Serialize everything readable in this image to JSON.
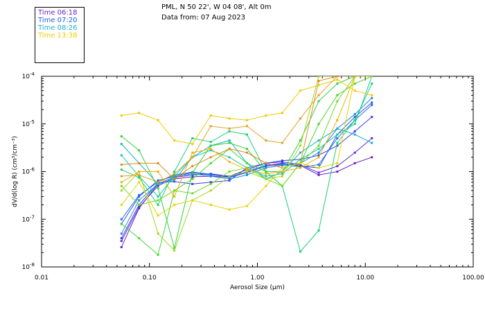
{
  "header": {
    "line1": "PML, N 50 22', W 04 08', Alt 0m",
    "line2": "Data from: 07 Aug 2023"
  },
  "legend": [
    {
      "label": "Time 06:18",
      "color": "#6a1fc8"
    },
    {
      "label": "Time 07:20",
      "color": "#1f5fe0"
    },
    {
      "label": "Time 08:26",
      "color": "#12b8c0"
    },
    {
      "label": "Time 13:38",
      "color": "#f0c800"
    }
  ],
  "chart_data": {
    "type": "line",
    "xscale": "log",
    "yscale": "log",
    "xlim": [
      0.01,
      100
    ],
    "ylim": [
      1e-08,
      0.0001
    ],
    "xlabel": "Aerosol Size (µm)",
    "ylabel": "dV/d(log R) (cm³/cm⁻³)",
    "xticks": [
      {
        "v": 0.01,
        "label": "0.01"
      },
      {
        "v": 0.1,
        "label": "0.10"
      },
      {
        "v": 1,
        "label": "1.00"
      },
      {
        "v": 10,
        "label": "10.00"
      },
      {
        "v": 100,
        "label": "100.00"
      }
    ],
    "yticks": [
      {
        "v": 1e-08,
        "mant": "10",
        "exp": "-8"
      },
      {
        "v": 1e-07,
        "mant": "10",
        "exp": "-7"
      },
      {
        "v": 1e-06,
        "mant": "10",
        "exp": "-6"
      },
      {
        "v": 1e-05,
        "mant": "10",
        "exp": "-5"
      },
      {
        "v": 0.0001,
        "mant": "10",
        "exp": "-4"
      }
    ],
    "x": [
      0.055,
      0.08,
      0.12,
      0.17,
      0.25,
      0.37,
      0.55,
      0.8,
      1.2,
      1.7,
      2.5,
      3.7,
      5.5,
      8.0,
      11.5
    ],
    "series": [
      {
        "color": "#6a1fc8",
        "values": [
          2.6e-08,
          1.7e-07,
          5.5e-07,
          7e-07,
          7.8e-07,
          8e-07,
          7.6e-07,
          1e-06,
          1.35e-06,
          1.45e-06,
          1.35e-06,
          8.5e-07,
          1e-06,
          1.5e-06,
          2e-06
        ]
      },
      {
        "color": "#5a2ad8",
        "values": [
          3.5e-08,
          1.8e-07,
          5e-07,
          7.5e-07,
          8.5e-07,
          9e-07,
          8e-07,
          1.1e-06,
          1.5e-06,
          1.6e-06,
          1.4e-06,
          9.5e-07,
          1.3e-06,
          2.5e-06,
          5e-06
        ]
      },
      {
        "color": "#3a3ae0",
        "values": [
          4e-08,
          2e-07,
          5.8e-07,
          6.2e-07,
          5.5e-07,
          6e-07,
          6.5e-07,
          1.2e-06,
          1.5e-06,
          1.7e-06,
          1.8e-06,
          2.2e-06,
          3.5e-06,
          7e-06,
          1.4e-05
        ]
      },
      {
        "color": "#2a4fe8",
        "values": [
          8e-08,
          3e-07,
          6.5e-07,
          8e-07,
          9.5e-07,
          8.5e-07,
          7.8e-07,
          1e-06,
          1.35e-06,
          1.5e-06,
          1.3e-06,
          1.2e-06,
          6e-06,
          1.4e-05,
          2.8e-05
        ]
      },
      {
        "color": "#1f6ae8",
        "values": [
          1e-07,
          3.2e-07,
          6e-07,
          8.5e-07,
          9.8e-07,
          8.8e-07,
          7.5e-07,
          9.5e-07,
          1.3e-06,
          1.4e-06,
          1.25e-06,
          1.4e-06,
          5e-06,
          1.2e-05,
          2.5e-05
        ]
      },
      {
        "color": "#1a88e0",
        "values": [
          5e-08,
          2.5e-07,
          5.5e-07,
          7.8e-07,
          9e-07,
          8e-07,
          7e-07,
          8.5e-07,
          1.2e-06,
          1.35e-06,
          1.5e-06,
          2.5e-06,
          8e-06,
          1.6e-05,
          3.5e-05
        ]
      },
      {
        "color": "#14b0c8",
        "values": [
          3.8e-06,
          1.5e-06,
          5.5e-07,
          6.5e-07,
          2e-06,
          3.5e-06,
          4.5e-06,
          1.5e-06,
          7e-07,
          1e-06,
          2.5e-06,
          4.5e-06,
          8e-06,
          6e-06,
          4e-06
        ]
      },
      {
        "color": "#12c8a8",
        "values": [
          2.2e-06,
          8e-07,
          3e-07,
          8e-07,
          2e-06,
          2.8e-06,
          2e-06,
          1.2e-06,
          8e-07,
          9e-07,
          1.8e-06,
          3e-06,
          6e-06,
          1e-05,
          0.0001
        ]
      },
      {
        "color": "#18d070",
        "values": [
          1.1e-06,
          7.5e-07,
          2e-07,
          1e-06,
          5e-06,
          4.2e-06,
          7e-06,
          6e-06,
          1e-06,
          5e-07,
          2.1e-08,
          5.8e-08,
          4e-06,
          1.2e-05,
          7e-05
        ]
      },
      {
        "color": "#30d040",
        "values": [
          5.5e-06,
          2.8e-06,
          4.5e-07,
          2.5e-08,
          9.5e-07,
          3.5e-06,
          4e-06,
          3e-06,
          1e-06,
          1e-06,
          4.5e-06,
          3e-05,
          7e-05,
          0.0001,
          0.0001
        ]
      },
      {
        "color": "#40d828",
        "values": [
          8e-08,
          4e-08,
          1.8e-08,
          4e-07,
          7e-07,
          1.5e-06,
          3e-06,
          1.5e-06,
          1e-06,
          5e-07,
          1.5e-06,
          1e-05,
          4e-05,
          7e-05,
          0.0001
        ]
      },
      {
        "color": "#70d820",
        "values": [
          5e-07,
          2e-07,
          2.5e-07,
          4e-07,
          3.5e-07,
          5.5e-07,
          1e-06,
          1.2e-06,
          7e-07,
          5e-07,
          1.5e-06,
          3.5e-06,
          3e-05,
          0.0001,
          0.0001
        ]
      },
      {
        "color": "#a0d820",
        "values": [
          4e-07,
          1e-06,
          5e-08,
          2.2e-08,
          2.5e-07,
          4e-07,
          8e-07,
          1e-06,
          7e-07,
          8e-07,
          3.5e-06,
          0.0001,
          0.0001,
          0.0001,
          0.0001
        ]
      },
      {
        "color": "#e0a020",
        "values": [
          8e-07,
          8.5e-07,
          6e-07,
          9e-07,
          2e-06,
          9e-06,
          8e-06,
          9e-06,
          4.5e-06,
          4e-06,
          1.3e-05,
          4e-05,
          0.0001,
          0.0001,
          0.0001
        ]
      },
      {
        "color": "#e08818",
        "values": [
          1.4e-06,
          1.5e-06,
          1.5e-06,
          7e-07,
          1.3e-06,
          2e-06,
          3e-06,
          2.5e-06,
          1.5e-06,
          1.2e-06,
          1.5e-06,
          8e-05,
          0.0001,
          0.0001,
          0.0001
        ]
      },
      {
        "color": "#f0b000",
        "values": [
          6e-07,
          1e-06,
          1e-06,
          3e-07,
          2.5e-06,
          3e-06,
          1.6e-06,
          1.1e-06,
          9e-07,
          1e-06,
          1.2e-06,
          2e-06,
          1.2e-05,
          0.0001,
          0.0001
        ]
      },
      {
        "color": "#f0c800",
        "values": [
          1.5e-05,
          1.7e-05,
          1.2e-05,
          4.5e-06,
          3.8e-06,
          1.5e-05,
          1.3e-05,
          1.2e-05,
          1.5e-05,
          1.7e-05,
          5e-05,
          6.5e-05,
          8.5e-05,
          5e-05,
          4e-05
        ]
      },
      {
        "color": "#e8d000",
        "values": [
          2e-07,
          6e-07,
          1.2e-07,
          2e-07,
          2.5e-07,
          2e-07,
          1.6e-07,
          1.9e-07,
          5e-07,
          1.2e-06,
          1.5e-06,
          1.2e-06,
          1.5e-06,
          0.0001,
          0.0001
        ]
      }
    ]
  }
}
